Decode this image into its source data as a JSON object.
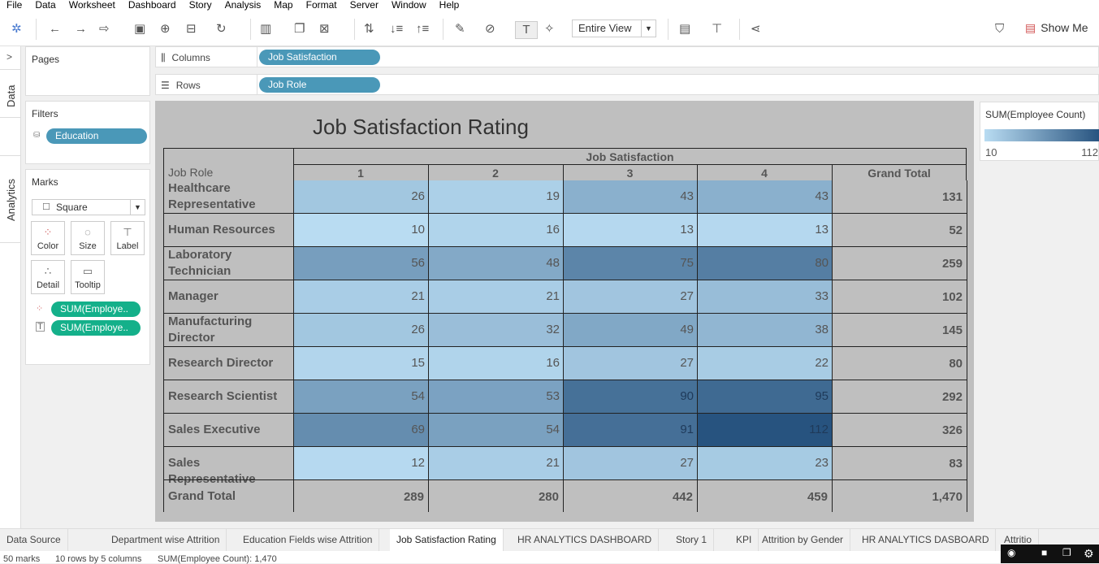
{
  "menu": [
    "File",
    "Data",
    "Worksheet",
    "Dashboard",
    "Story",
    "Analysis",
    "Map",
    "Format",
    "Server",
    "Window",
    "Help"
  ],
  "toolbar": {
    "view_select": "Entire View",
    "show_me": "Show Me"
  },
  "side_tabs": {
    "data": "Data",
    "analytics": "Analytics"
  },
  "pages": {
    "title": "Pages"
  },
  "filters": {
    "title": "Filters",
    "pill": "Education"
  },
  "marks": {
    "title": "Marks",
    "type": "Square",
    "buttons": [
      "Color",
      "Size",
      "Label",
      "Detail",
      "Tooltip"
    ],
    "pills": [
      "SUM(Employe..",
      "SUM(Employe.."
    ]
  },
  "shelves": {
    "columns_label": "Columns",
    "columns_pill": "Job Satisfaction",
    "rows_label": "Rows",
    "rows_pill": "Job Role"
  },
  "view": {
    "title": "Job Satisfaction Rating",
    "column_header": "Job Satisfaction",
    "row_header": "Job Role",
    "columns": [
      "1",
      "2",
      "3",
      "4",
      "Grand Total"
    ]
  },
  "chart_data": {
    "type": "heatmap",
    "title": "Job Satisfaction Rating",
    "xlabel": "Job Satisfaction",
    "ylabel": "Job Role",
    "categories": [
      "1",
      "2",
      "3",
      "4"
    ],
    "rows": [
      {
        "label": "Healthcare Representative",
        "values": [
          26,
          19,
          43,
          43
        ],
        "total": "131"
      },
      {
        "label": "Human Resources",
        "values": [
          10,
          16,
          13,
          13
        ],
        "total": "52"
      },
      {
        "label": "Laboratory Technician",
        "values": [
          56,
          48,
          75,
          80
        ],
        "total": "259"
      },
      {
        "label": "Manager",
        "values": [
          21,
          21,
          27,
          33
        ],
        "total": "102"
      },
      {
        "label": "Manufacturing Director",
        "values": [
          26,
          32,
          49,
          38
        ],
        "total": "145"
      },
      {
        "label": "Research Director",
        "values": [
          15,
          16,
          27,
          22
        ],
        "total": "80"
      },
      {
        "label": "Research Scientist",
        "values": [
          54,
          53,
          90,
          95
        ],
        "total": "292"
      },
      {
        "label": "Sales Executive",
        "values": [
          69,
          54,
          91,
          112
        ],
        "total": "326"
      },
      {
        "label": "Sales Representative",
        "values": [
          12,
          21,
          27,
          23
        ],
        "total": "83"
      }
    ],
    "grand_total": {
      "label": "Grand Total",
      "values": [
        "289",
        "280",
        "442",
        "459"
      ],
      "total": "1,470"
    },
    "color_range": [
      10,
      112
    ],
    "color_low": "#b9dcf2",
    "color_high": "#27537f"
  },
  "legend": {
    "title": "SUM(Employee Count)",
    "min": "10",
    "max": "112"
  },
  "sheet_tabs": [
    {
      "label": "Data Source",
      "left": 0
    },
    {
      "label": "Department wise Attrition"
    },
    {
      "label": "Education Fields wise Attrition"
    },
    {
      "label": "Job Satisfaction Rating",
      "active": true
    },
    {
      "label": "HR ANALYTICS DASHBOARD"
    },
    {
      "label": "Story 1"
    },
    {
      "label": "KPI"
    },
    {
      "label": "Attrition by Gender"
    },
    {
      "label": "HR ANALYTICS DASBOARD"
    },
    {
      "label": "Attritio"
    }
  ],
  "status": {
    "marks": "50 marks",
    "dims": "10 rows by 5 columns",
    "sum": "SUM(Employee Count): 1,470"
  }
}
